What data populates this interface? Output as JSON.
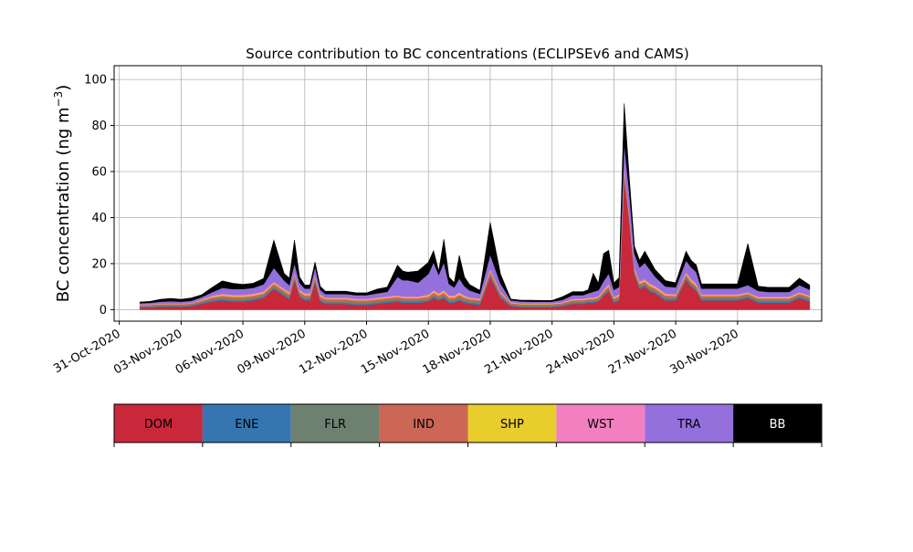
{
  "chart_data": {
    "type": "area",
    "stacked": true,
    "title": "Source contribution to BC concentrations (ECLIPSEv6 and CAMS)",
    "xlabel": "",
    "ylabel": "BC concentration (ng m",
    "ylabel_sup": "−3",
    "ylabel_close": ")",
    "ylim": [
      -5,
      106
    ],
    "yticks": [
      0,
      20,
      40,
      60,
      80,
      100
    ],
    "xlim": [
      "2020-10-30T18:00",
      "2020-12-04T02:00"
    ],
    "xticks": [
      "2020-10-31",
      "2020-11-03",
      "2020-11-06",
      "2020-11-09",
      "2020-11-12",
      "2020-11-15",
      "2020-11-18",
      "2020-11-21",
      "2020-11-24",
      "2020-11-27",
      "2020-11-30"
    ],
    "xtick_labels": [
      "31-Oct-2020",
      "03-Nov-2020",
      "06-Nov-2020",
      "09-Nov-2020",
      "12-Nov-2020",
      "15-Nov-2020",
      "18-Nov-2020",
      "21-Nov-2020",
      "24-Nov-2020",
      "27-Nov-2020",
      "30-Nov-2020"
    ],
    "grid": true,
    "x": [
      "2020-11-01T00:00",
      "2020-11-01T12:00",
      "2020-11-02T00:00",
      "2020-11-02T12:00",
      "2020-11-03T00:00",
      "2020-11-03T12:00",
      "2020-11-04T00:00",
      "2020-11-04T12:00",
      "2020-11-05T00:00",
      "2020-11-05T12:00",
      "2020-11-06T00:00",
      "2020-11-06T12:00",
      "2020-11-07T00:00",
      "2020-11-07T12:00",
      "2020-11-08T00:00",
      "2020-11-08T06:00",
      "2020-11-08T12:00",
      "2020-11-08T18:00",
      "2020-11-09T00:00",
      "2020-11-09T06:00",
      "2020-11-09T12:00",
      "2020-11-09T18:00",
      "2020-11-10T00:00",
      "2020-11-10T12:00",
      "2020-11-11T00:00",
      "2020-11-11T12:00",
      "2020-11-12T00:00",
      "2020-11-12T12:00",
      "2020-11-13T00:00",
      "2020-11-13T12:00",
      "2020-11-13T18:00",
      "2020-11-14T00:00",
      "2020-11-14T12:00",
      "2020-11-15T00:00",
      "2020-11-15T06:00",
      "2020-11-15T12:00",
      "2020-11-15T18:00",
      "2020-11-16T00:00",
      "2020-11-16T06:00",
      "2020-11-16T12:00",
      "2020-11-16T18:00",
      "2020-11-17T00:00",
      "2020-11-17T12:00",
      "2020-11-18T00:00",
      "2020-11-18T12:00",
      "2020-11-19T00:00",
      "2020-11-19T12:00",
      "2020-11-20T00:00",
      "2020-11-20T12:00",
      "2020-11-21T00:00",
      "2020-11-21T12:00",
      "2020-11-22T00:00",
      "2020-11-22T06:00",
      "2020-11-22T12:00",
      "2020-11-22T18:00",
      "2020-11-23T00:00",
      "2020-11-23T06:00",
      "2020-11-23T12:00",
      "2020-11-23T18:00",
      "2020-11-24T00:00",
      "2020-11-24T06:00",
      "2020-11-24T12:00",
      "2020-11-24T18:00",
      "2020-11-25T00:00",
      "2020-11-25T06:00",
      "2020-11-25T12:00",
      "2020-11-25T18:00",
      "2020-11-26T00:00",
      "2020-11-26T12:00",
      "2020-11-27T00:00",
      "2020-11-27T12:00",
      "2020-11-27T18:00",
      "2020-11-28T00:00",
      "2020-11-28T06:00",
      "2020-11-28T12:00",
      "2020-11-29T00:00",
      "2020-11-29T12:00",
      "2020-11-30T00:00",
      "2020-11-30T12:00",
      "2020-12-01T00:00",
      "2020-12-01T12:00",
      "2020-12-02T00:00",
      "2020-12-02T12:00",
      "2020-12-03T00:00",
      "2020-12-03T12:00"
    ],
    "series": [
      {
        "name": "DOM",
        "color": "#c8283a",
        "values": [
          0.8,
          0.9,
          1.2,
          1.3,
          1.2,
          1.5,
          2.5,
          3.5,
          4,
          3.5,
          3.5,
          4,
          5,
          9,
          6,
          4.5,
          13,
          5.5,
          4,
          4,
          12,
          3.5,
          2.5,
          2.5,
          2.5,
          2,
          2,
          2.5,
          3,
          3.5,
          3,
          3,
          3,
          3.5,
          5,
          4,
          5,
          3,
          3,
          4,
          3,
          2.5,
          2,
          14,
          5,
          1.5,
          1,
          1,
          1,
          1,
          1.5,
          2.5,
          2.5,
          2.5,
          3,
          3,
          3.5,
          6,
          8,
          3,
          4,
          58,
          38,
          15,
          9,
          10,
          8,
          7,
          4,
          4,
          13,
          10,
          8,
          4,
          4,
          4,
          4,
          4,
          5,
          3,
          3,
          3,
          3,
          5,
          3.5
        ]
      },
      {
        "name": "ENE",
        "color": "#3576b0",
        "values": [
          0.3,
          0.3,
          0.3,
          0.3,
          0.3,
          0.3,
          0.4,
          0.5,
          0.5,
          0.5,
          0.5,
          0.5,
          0.5,
          0.5,
          0.5,
          0.5,
          0.5,
          0.5,
          0.5,
          0.5,
          0.5,
          0.5,
          0.5,
          0.5,
          0.5,
          0.5,
          0.5,
          0.5,
          0.5,
          0.5,
          0.5,
          0.5,
          0.5,
          0.5,
          0.5,
          0.5,
          0.5,
          0.5,
          0.5,
          0.5,
          0.5,
          0.5,
          0.5,
          0.5,
          0.5,
          0.3,
          0.3,
          0.3,
          0.3,
          0.3,
          0.3,
          0.4,
          0.4,
          0.4,
          0.4,
          0.4,
          0.4,
          0.4,
          0.4,
          0.4,
          0.4,
          0.5,
          0.5,
          0.5,
          0.5,
          0.5,
          0.5,
          0.5,
          0.5,
          0.5,
          0.5,
          0.5,
          0.5,
          0.5,
          0.5,
          0.5,
          0.5,
          0.5,
          0.5,
          0.5,
          0.5,
          0.5,
          0.5,
          0.5,
          0.5
        ]
      },
      {
        "name": "FLR",
        "color": "#6e8171",
        "values": [
          0.4,
          0.4,
          0.4,
          0.4,
          0.4,
          0.4,
          0.5,
          0.6,
          0.7,
          0.7,
          0.7,
          0.7,
          0.7,
          0.8,
          0.8,
          0.8,
          0.8,
          0.8,
          0.8,
          0.8,
          0.8,
          0.8,
          0.7,
          0.7,
          0.7,
          0.7,
          0.7,
          0.7,
          0.7,
          0.7,
          0.7,
          0.7,
          0.7,
          0.7,
          0.8,
          0.8,
          0.8,
          0.8,
          0.8,
          0.8,
          0.8,
          0.8,
          0.8,
          0.8,
          0.8,
          0.5,
          0.5,
          0.5,
          0.5,
          0.5,
          0.5,
          0.6,
          0.6,
          0.6,
          0.6,
          0.6,
          0.6,
          0.7,
          0.8,
          0.7,
          0.7,
          0.8,
          0.8,
          0.8,
          0.8,
          0.8,
          0.8,
          0.8,
          0.8,
          0.7,
          0.8,
          0.8,
          0.8,
          0.7,
          0.7,
          0.7,
          0.7,
          0.7,
          0.7,
          0.7,
          0.7,
          0.7,
          0.7,
          0.7,
          0.7
        ]
      },
      {
        "name": "IND",
        "color": "#cc6655",
        "values": [
          0.5,
          0.5,
          0.5,
          0.5,
          0.5,
          0.5,
          0.6,
          0.8,
          0.9,
          0.9,
          0.9,
          0.9,
          0.9,
          1,
          1,
          1,
          1,
          1,
          1,
          1,
          1,
          1,
          0.9,
          0.9,
          0.9,
          0.9,
          0.9,
          0.9,
          0.9,
          0.9,
          0.9,
          0.9,
          0.9,
          1,
          1.2,
          1,
          1.2,
          1,
          1,
          1.2,
          1,
          0.9,
          0.9,
          1.5,
          0.9,
          0.6,
          0.6,
          0.6,
          0.6,
          0.6,
          0.6,
          0.7,
          0.7,
          0.7,
          0.7,
          0.7,
          0.8,
          0.9,
          1,
          0.8,
          0.9,
          1.5,
          1.2,
          1,
          1,
          1,
          1,
          1,
          0.9,
          0.8,
          1,
          1,
          1,
          0.8,
          0.8,
          0.8,
          0.8,
          0.8,
          0.8,
          0.8,
          0.8,
          0.8,
          0.8,
          0.8,
          0.8
        ]
      },
      {
        "name": "SHP",
        "color": "#e8cd2c",
        "values": [
          0.1,
          0.1,
          0.1,
          0.1,
          0.1,
          0.1,
          0.2,
          0.3,
          0.4,
          0.4,
          0.4,
          0.4,
          0.4,
          0.4,
          0.4,
          0.4,
          0.4,
          0.4,
          0.4,
          0.4,
          0.4,
          0.4,
          0.3,
          0.3,
          0.3,
          0.3,
          0.3,
          0.3,
          0.3,
          0.3,
          0.3,
          0.3,
          0.3,
          0.4,
          0.5,
          0.4,
          0.5,
          0.4,
          0.4,
          0.5,
          0.4,
          0.3,
          0.3,
          0.5,
          0.3,
          0.2,
          0.2,
          0.2,
          0.2,
          0.2,
          0.2,
          0.3,
          0.3,
          0.3,
          0.3,
          0.3,
          0.3,
          0.4,
          0.5,
          0.3,
          0.4,
          0.8,
          0.6,
          0.5,
          0.5,
          0.5,
          0.5,
          0.5,
          0.4,
          0.3,
          0.5,
          0.5,
          0.5,
          0.3,
          0.3,
          0.3,
          0.3,
          0.3,
          0.3,
          0.3,
          0.3,
          0.3,
          0.3,
          0.3,
          0.3
        ]
      },
      {
        "name": "WST",
        "color": "#f27fc0",
        "values": [
          0.2,
          0.2,
          0.2,
          0.2,
          0.2,
          0.2,
          0.3,
          0.4,
          0.5,
          0.5,
          0.5,
          0.5,
          0.5,
          0.5,
          0.5,
          0.5,
          0.5,
          0.5,
          0.5,
          0.5,
          0.5,
          0.5,
          0.4,
          0.4,
          0.4,
          0.4,
          0.4,
          0.4,
          0.4,
          0.4,
          0.4,
          0.4,
          0.4,
          0.5,
          0.6,
          0.5,
          0.6,
          0.5,
          0.5,
          0.6,
          0.5,
          0.4,
          0.4,
          0.6,
          0.4,
          0.2,
          0.2,
          0.2,
          0.2,
          0.2,
          0.2,
          0.3,
          0.3,
          0.3,
          0.3,
          0.3,
          0.4,
          0.5,
          0.6,
          0.4,
          0.5,
          1,
          0.8,
          0.6,
          0.6,
          0.6,
          0.6,
          0.6,
          0.5,
          0.4,
          0.6,
          0.6,
          0.6,
          0.4,
          0.4,
          0.4,
          0.4,
          0.4,
          0.4,
          0.4,
          0.4,
          0.4,
          0.4,
          0.4,
          0.4
        ]
      },
      {
        "name": "TRA",
        "color": "#9370db",
        "values": [
          0.5,
          0.6,
          0.8,
          0.9,
          0.8,
          0.9,
          1,
          1.5,
          2.5,
          2.5,
          2.5,
          2.5,
          3,
          6,
          3.5,
          3,
          4,
          3,
          2,
          2,
          3.5,
          2,
          1.5,
          1.5,
          1.5,
          1.5,
          1.5,
          1.8,
          2,
          8,
          7,
          7,
          6,
          9,
          12,
          8,
          12,
          5,
          3.5,
          6,
          4,
          3,
          2,
          6,
          3.5,
          0.8,
          0.8,
          0.7,
          0.7,
          0.7,
          1,
          1.5,
          1.5,
          1.5,
          1.8,
          2.5,
          2.5,
          3.5,
          4.5,
          3,
          3,
          10,
          9,
          6,
          6,
          7,
          6,
          4,
          3,
          3,
          5,
          5,
          5,
          2.5,
          2.5,
          2.5,
          2.5,
          2.5,
          3,
          2.5,
          2,
          2,
          2,
          3,
          2.5
        ]
      },
      {
        "name": "BB",
        "color": "#000000",
        "values": [
          0.5,
          0.6,
          1,
          1.2,
          1,
          1.2,
          1,
          2,
          3,
          2.5,
          2,
          2,
          2.5,
          12,
          3,
          3,
          10,
          2.5,
          1.5,
          1.5,
          2,
          1.5,
          1.2,
          1.2,
          1.2,
          1,
          1,
          1.8,
          2,
          5,
          4,
          3.5,
          5,
          5,
          5,
          1.5,
          10,
          3,
          2,
          10,
          4,
          2.5,
          1.5,
          14,
          4,
          0.5,
          0.5,
          0.6,
          0.5,
          0.5,
          1.3,
          1.5,
          1.5,
          1.5,
          1.5,
          8,
          3,
          12,
          10,
          3,
          4,
          17,
          6,
          3,
          3,
          5,
          4,
          3,
          2.5,
          2,
          4,
          3,
          3,
          2,
          2,
          2,
          2,
          2,
          18,
          2,
          2,
          2,
          2,
          3,
          2
        ]
      }
    ]
  },
  "legend_bar": {
    "items": [
      {
        "label": "DOM",
        "color": "#c8283a",
        "text_color": "#000000"
      },
      {
        "label": "ENE",
        "color": "#3576b0",
        "text_color": "#000000"
      },
      {
        "label": "FLR",
        "color": "#6e8171",
        "text_color": "#000000"
      },
      {
        "label": "IND",
        "color": "#cc6655",
        "text_color": "#000000"
      },
      {
        "label": "SHP",
        "color": "#e8cd2c",
        "text_color": "#000000"
      },
      {
        "label": "WST",
        "color": "#f27fc0",
        "text_color": "#000000"
      },
      {
        "label": "TRA",
        "color": "#9370db",
        "text_color": "#000000"
      },
      {
        "label": "BB",
        "color": "#000000",
        "text_color": "#ffffff"
      }
    ]
  }
}
